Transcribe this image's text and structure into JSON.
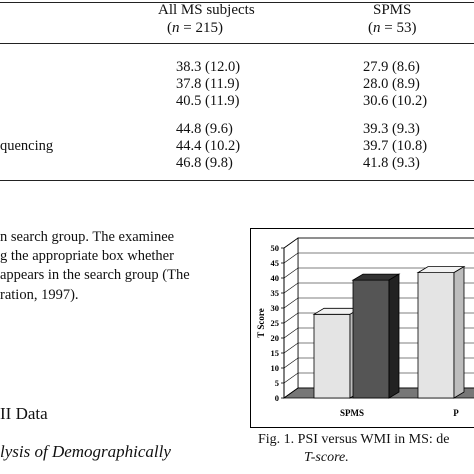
{
  "table": {
    "columns": [
      {
        "title": "All MS subjects",
        "n_label": "n",
        "n_value": "= 215)"
      },
      {
        "title": "SPMS",
        "n_label": "n",
        "n_value": "= 53)"
      }
    ],
    "row_label_fragment": "quencing",
    "rows": [
      [
        "38.3 (12.0)",
        "27.9 (8.6)"
      ],
      [
        "37.8 (11.9)",
        "28.0 (8.9)"
      ],
      [
        "40.5 (11.9)",
        "30.6 (10.2)"
      ],
      [
        "44.8 (9.6)",
        "39.3 (9.3)"
      ],
      [
        "44.4 (10.2)",
        "39.7 (10.8)"
      ],
      [
        "46.8 (9.8)",
        "41.8 (9.3)"
      ]
    ]
  },
  "body_text": {
    "lines": [
      "n search group. The examinee",
      "g the appropriate box whether",
      "appears in the search group (The",
      "ration, 1997)."
    ]
  },
  "section_heading": "II Data",
  "subsection_heading": "lysis of Demographically",
  "figure": {
    "caption_line1": "Fig. 1.  PSI versus WMI in MS: de",
    "caption_line2": "T-score."
  },
  "chart_data": {
    "type": "bar",
    "ylabel": "T Score",
    "ylim": [
      0,
      50
    ],
    "yticks": [
      "0",
      "5",
      "10",
      "15",
      "20",
      "25",
      "30",
      "35",
      "40",
      "45",
      "50"
    ],
    "categories": [
      "SPMS",
      "P"
    ],
    "series": [
      {
        "values": [
          27.9,
          41.8
        ],
        "color": "#e4e4e4"
      },
      {
        "values": [
          39.3,
          null
        ],
        "color": "#555555"
      }
    ]
  }
}
